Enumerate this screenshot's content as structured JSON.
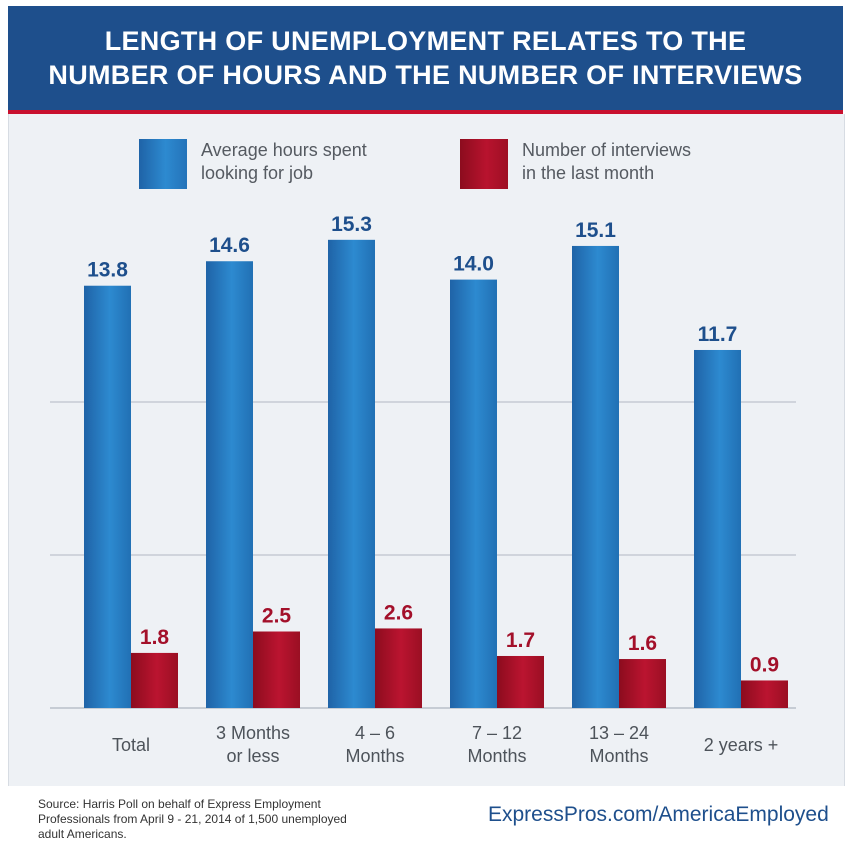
{
  "header": {
    "title_line1": "LENGTH OF UNEMPLOYMENT RELATES TO THE",
    "title_line2": "NUMBER OF HOURS AND THE NUMBER OF INTERVIEWS"
  },
  "legend": {
    "hours": {
      "line1": "Average hours spent",
      "line2": "looking for job",
      "color": "#2473b9"
    },
    "interviews": {
      "line1": "Number of interviews",
      "line2": "in the last month",
      "color": "#a3102a"
    }
  },
  "chart_data": {
    "type": "bar",
    "title": "LENGTH OF UNEMPLOYMENT RELATES TO THE NUMBER OF HOURS AND THE NUMBER OF INTERVIEWS",
    "categories": [
      [
        "Total"
      ],
      [
        "3 Months",
        "or less"
      ],
      [
        "4 – 6",
        "Months"
      ],
      [
        "7 – 12",
        "Months"
      ],
      [
        "13 – 24",
        "Months"
      ],
      [
        "2 years +"
      ]
    ],
    "series": [
      {
        "name": "Average hours spent looking for job",
        "values": [
          13.8,
          14.6,
          15.3,
          14.0,
          15.1,
          11.7
        ],
        "labels": [
          "13.8",
          "14.6",
          "15.3",
          "14.0",
          "15.1",
          "11.7"
        ],
        "color": "#2473b9",
        "label_color": "#1e4f8c"
      },
      {
        "name": "Number of interviews in the last month",
        "values": [
          1.8,
          2.5,
          2.6,
          1.7,
          1.6,
          0.9
        ],
        "labels": [
          "1.8",
          "2.5",
          "2.6",
          "1.7",
          "1.6",
          "0.9"
        ],
        "color": "#a3102a",
        "label_color": "#a3102a"
      }
    ],
    "ylim": [
      0,
      18
    ],
    "grid": true,
    "legend_position": "top"
  },
  "footer": {
    "source_line1": "Source: Harris Poll on behalf of Express Employment",
    "source_line2": "Professionals from April 9 - 21, 2014 of 1,500 unemployed",
    "source_line3": "adult Americans.",
    "link": "ExpressPros.com/AmericaEmployed"
  }
}
